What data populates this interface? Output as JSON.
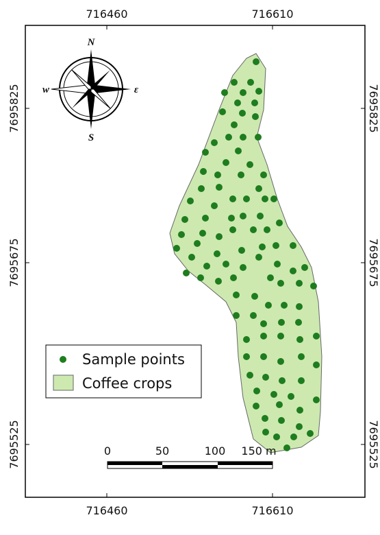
{
  "map": {
    "top_labels": [
      "716460",
      "716610"
    ],
    "bottom_labels": [
      "716460",
      "716610"
    ],
    "left_labels": [
      "7695825",
      "7695675",
      "7695525"
    ],
    "right_labels": [
      "7695825",
      "7695675",
      "7695525"
    ],
    "compass": {
      "north": "N",
      "east": "ε",
      "south": "S",
      "west": "w"
    },
    "legend": {
      "points": "Sample points",
      "area": "Coffee crops"
    },
    "scale_bar": {
      "labels": [
        "0",
        "50",
        "100",
        "150 m"
      ]
    }
  }
}
